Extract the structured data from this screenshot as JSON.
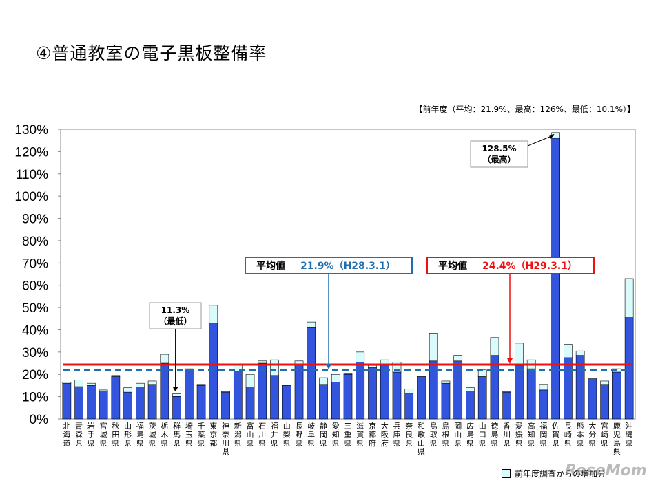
{
  "title": "④普通教室の電子黒板整備率",
  "prev_note": "【前年度（平均：21.9%、最高：126%、最低：10.1%）】",
  "legend_label": "前年度調査からの増加分",
  "watermark": "ReseMom",
  "colors": {
    "bar": "#3355dd",
    "increase": "#d9fbfb",
    "avg_current": "#ee1111",
    "avg_prev": "#1f6fb0"
  },
  "chart_data": {
    "type": "bar",
    "stacked": true,
    "ylim": [
      0,
      130
    ],
    "yticks": [
      0,
      10,
      20,
      30,
      40,
      50,
      60,
      70,
      80,
      90,
      100,
      110,
      120,
      130
    ],
    "ytick_labels": [
      "0%",
      "10%",
      "20%",
      "30%",
      "40%",
      "50%",
      "60%",
      "70%",
      "80%",
      "90%",
      "100%",
      "110%",
      "120%",
      "130%"
    ],
    "categories": [
      "北海道",
      "青森県",
      "岩手県",
      "宮城県",
      "秋田県",
      "山形県",
      "福島県",
      "茨城県",
      "栃木県",
      "群馬県",
      "埼玉県",
      "千葉県",
      "東京都",
      "神奈川県",
      "新潟県",
      "富山県",
      "石川県",
      "福井県",
      "山梨県",
      "長野県",
      "岐阜県",
      "静岡県",
      "愛知県",
      "三重県",
      "滋賀県",
      "京都府",
      "大阪府",
      "兵庫県",
      "奈良県",
      "和歌山県",
      "鳥取県",
      "島根県",
      "岡山県",
      "広島県",
      "山口県",
      "徳島県",
      "香川県",
      "愛媛県",
      "高知県",
      "福岡県",
      "佐賀県",
      "長崎県",
      "熊本県",
      "大分県",
      "宮崎県",
      "鹿児島県",
      "沖縄県"
    ],
    "series": [
      {
        "values": [
          16,
          14.5,
          15,
          12.5,
          19,
          12,
          14,
          15.5,
          25,
          10.1,
          22,
          15,
          43,
          12,
          21.5,
          14,
          25,
          19.5,
          15,
          24.5,
          41,
          15.5,
          16.5,
          20,
          25.5,
          23,
          24.5,
          21,
          11.5,
          19,
          26,
          16,
          26,
          12.5,
          19,
          28.5,
          12,
          24,
          22.5,
          13,
          126,
          27.5,
          28.5,
          18,
          15.5,
          21,
          45.5
        ]
      },
      {
        "name": "前年度調査からの増加分",
        "values": [
          0.5,
          3,
          1,
          0.5,
          0.5,
          2,
          2,
          1.5,
          4,
          1.2,
          0.5,
          0.5,
          8,
          0.3,
          3,
          6,
          1,
          7,
          0.3,
          1.5,
          2.5,
          3,
          3.5,
          0.5,
          4.5,
          1,
          2,
          4.5,
          2,
          0.3,
          12.5,
          1,
          2.5,
          1.5,
          3,
          8,
          0.3,
          10,
          4,
          2.5,
          2.5,
          6,
          2,
          0.3,
          1.5,
          1.5,
          17.5
        ]
      }
    ],
    "averages": [
      {
        "label": "平均値",
        "value_text": "21.9%（H28.3.1）",
        "value": 21.9
      },
      {
        "label": "平均値",
        "value_text": "24.4%（H29.3.1）",
        "value": 24.4
      }
    ],
    "annotations": [
      {
        "text1": "128.5%",
        "text2": "（最高）",
        "target": "佐賀県",
        "value": 128.5
      },
      {
        "text1": "11.3%",
        "text2": "（最低）",
        "target": "群馬県",
        "value": 11.3
      }
    ]
  }
}
